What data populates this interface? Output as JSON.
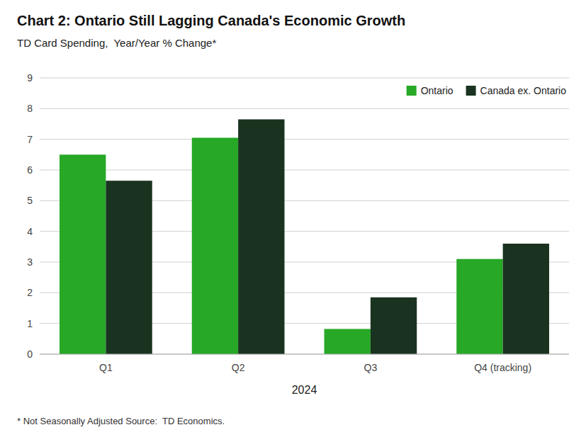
{
  "chart_data": {
    "type": "bar",
    "title": "Chart 2: Ontario Still Lagging Canada's Economic Growth",
    "subtitle": "TD Card Spending,  Year/Year % Change*",
    "xlabel": "2024",
    "footnote": "* Not Seasonally Adjusted Source:  TD Economics.",
    "categories": [
      "Q1",
      "Q2",
      "Q3",
      "Q4 (tracking)"
    ],
    "series": [
      {
        "name": "Ontario",
        "color": "#27a827",
        "values": [
          6.5,
          7.05,
          0.82,
          3.1
        ]
      },
      {
        "name": "Canada ex. Ontario",
        "color": "#1a3320",
        "values": [
          5.65,
          7.65,
          1.85,
          3.6
        ]
      }
    ],
    "ylim": [
      0,
      9
    ],
    "yticks": [
      0,
      1,
      2,
      3,
      4,
      5,
      6,
      7,
      8,
      9
    ],
    "grid": true,
    "legend": "upper right"
  }
}
